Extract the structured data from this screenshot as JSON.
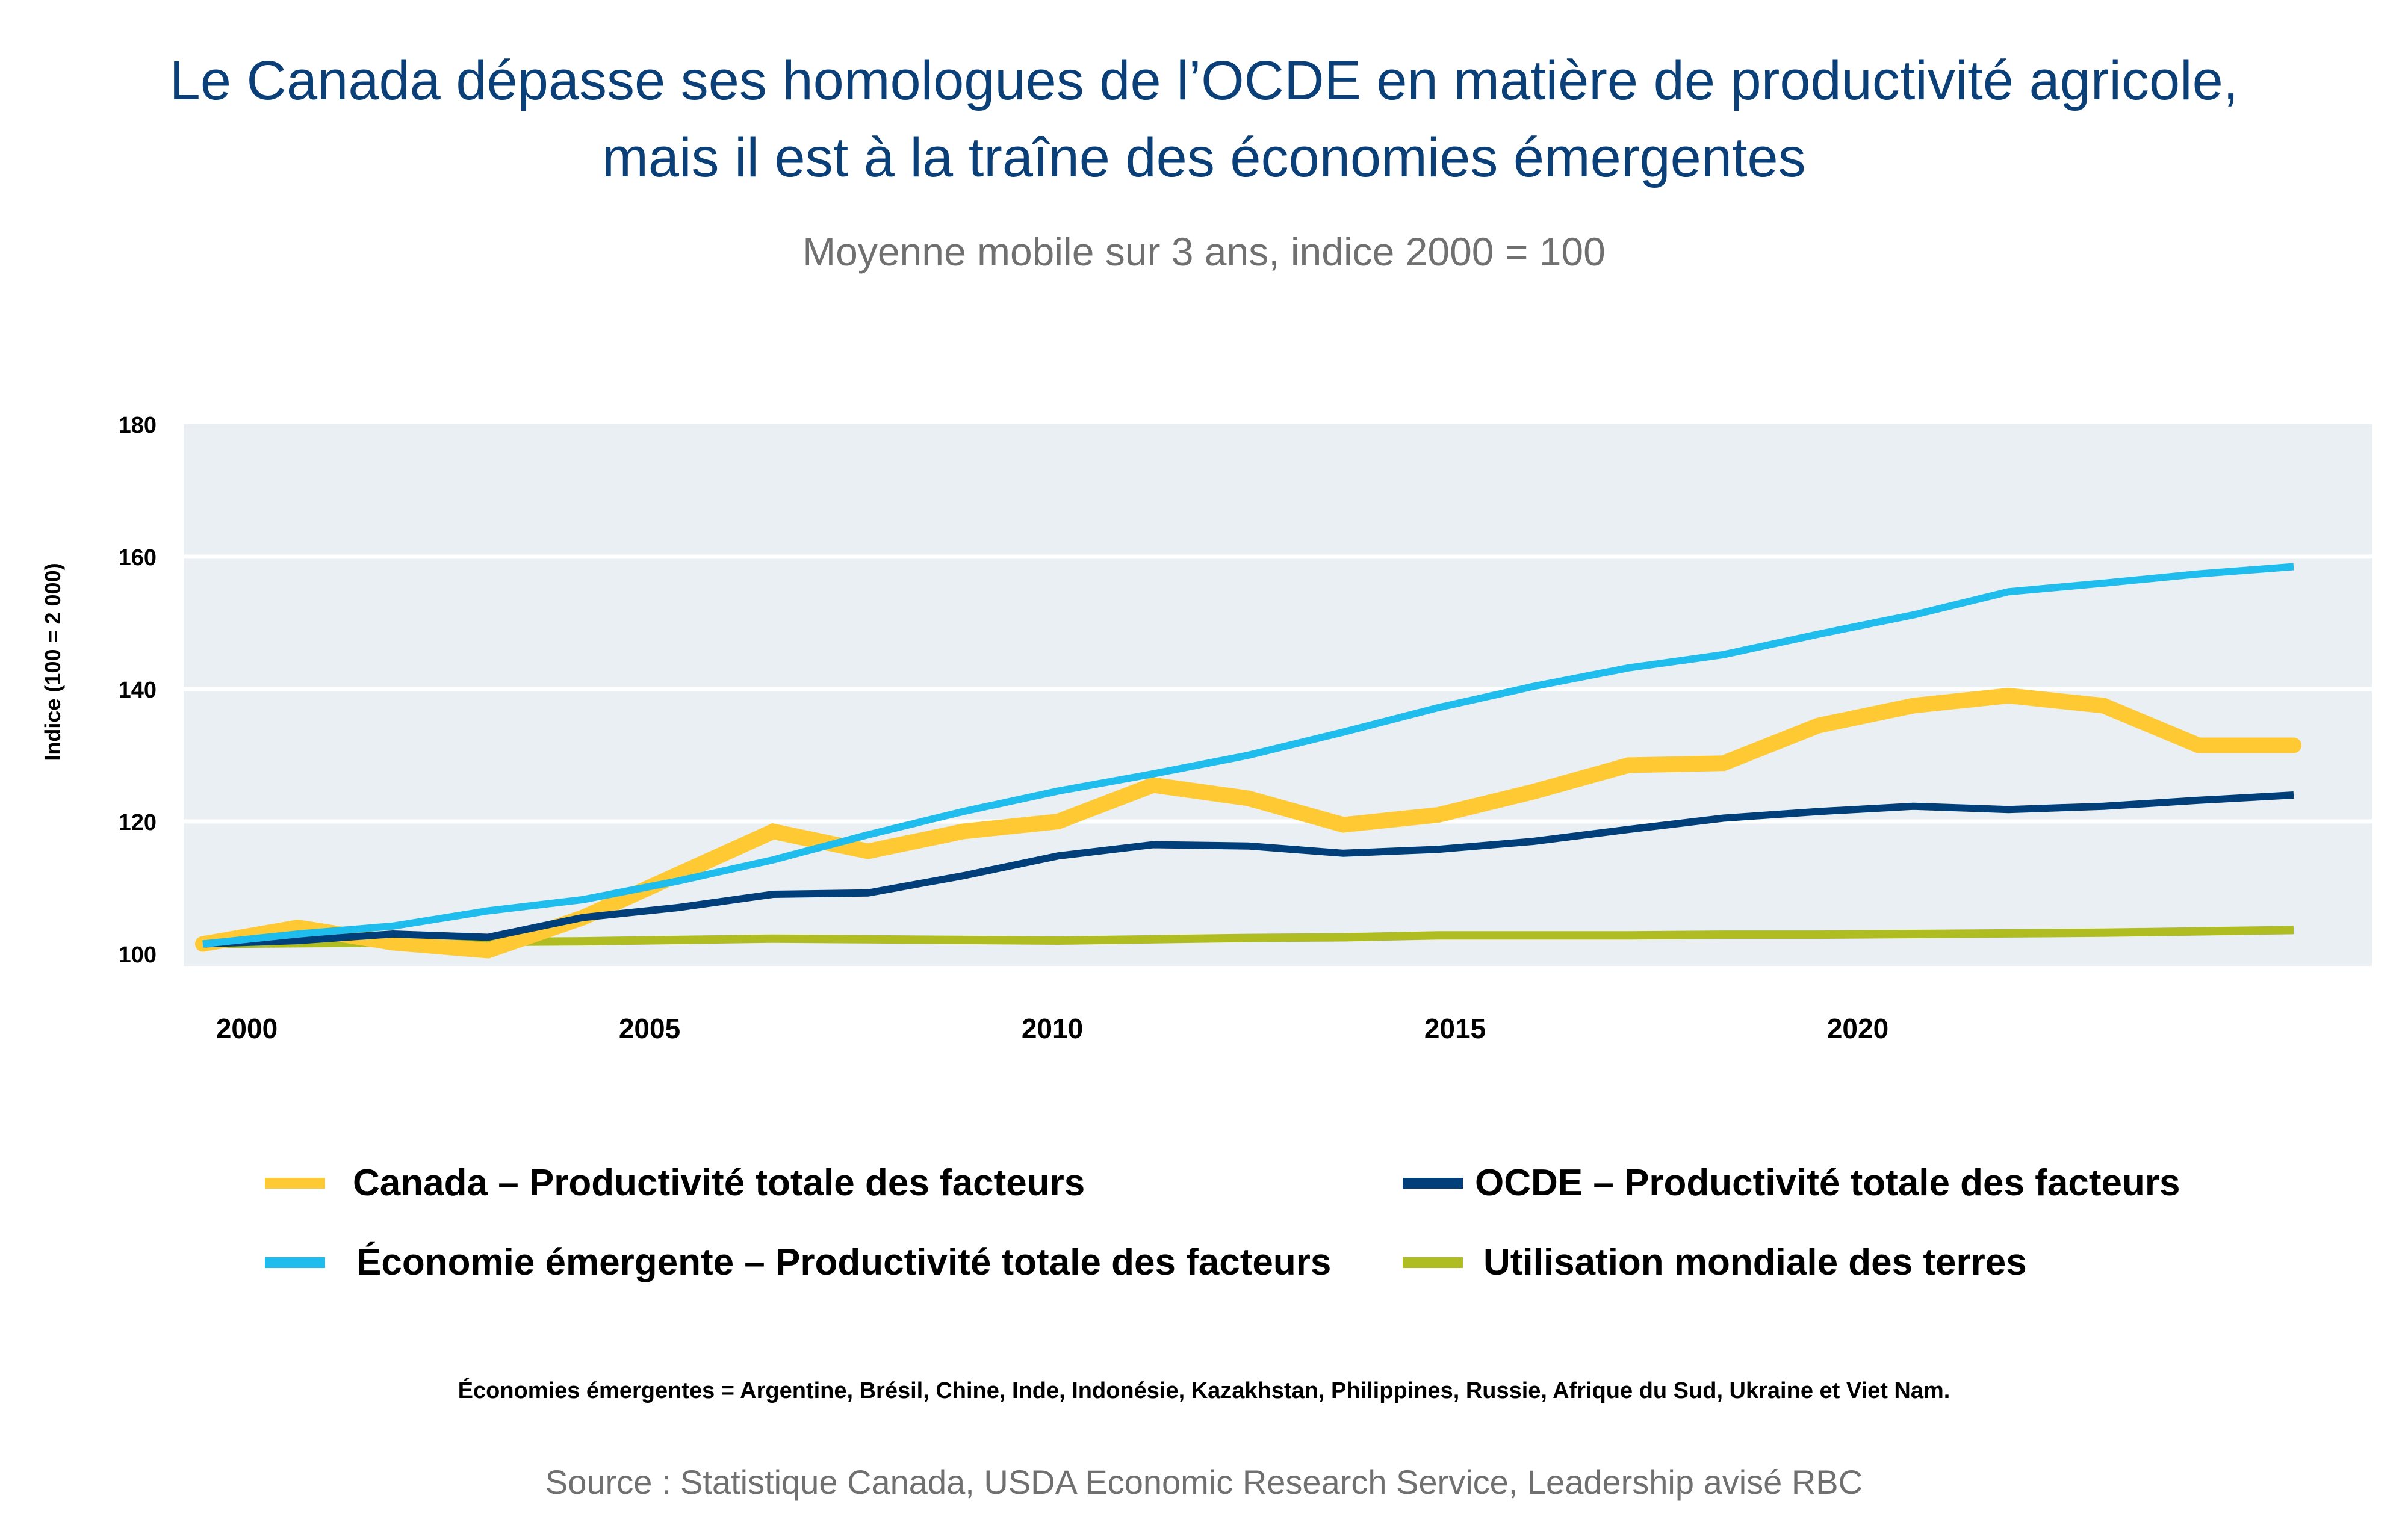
{
  "header": {
    "title_line1": "Le Canada dépasse ses homologues de l’OCDE en matière de productivité agricole,",
    "title_line2": "mais il est à la traîne des économies émergentes",
    "subtitle": "Moyenne mobile sur 3 ans, indice 2000 = 100"
  },
  "chart_data": {
    "type": "line",
    "title": "Le Canada dépasse ses homologues de l’OCDE en matière de productivité agricole, mais il est à la traîne des économies émergentes",
    "subtitle": "Moyenne mobile sur 3 ans, indice 2000 = 100",
    "xlabel": "",
    "ylabel": "Indice (100 = 2 000)",
    "xlim": [
      1999.4,
      2026.5
    ],
    "ylim": [
      100,
      180
    ],
    "x_ticks": [
      2000,
      2005,
      2010,
      2015,
      2020
    ],
    "x_tick_labels": [
      "2000",
      "2005",
      "2010",
      "2015",
      "2020"
    ],
    "y_ticks": [
      100,
      120,
      140,
      160,
      180
    ],
    "y_tick_labels": [
      "100",
      "120",
      "140",
      "160",
      "180"
    ],
    "grid": true,
    "background": "#e9eff2",
    "legend_position": "bottom",
    "x": [
      1999.5,
      2000.7,
      2001.9,
      2003.0,
      2004.2,
      2005.4,
      2006.5,
      2007.7,
      2008.9,
      2010.0,
      2011.2,
      2012.4,
      2013.6,
      2014.7,
      2015.9,
      2017.1,
      2018.2,
      2019.4,
      2020.6,
      2021.8,
      2022.9,
      2024.1,
      2025.3
    ],
    "series": [
      {
        "name": "Canada – Productivité totale des facteurs",
        "color": "#ffc933",
        "values": [
          101.5,
          104.0,
          101.7,
          100.5,
          105.5,
          112.0,
          118.5,
          115.5,
          118.5,
          120.0,
          125.5,
          123.5,
          119.5,
          121.0,
          124.5,
          128.5,
          128.8,
          134.5,
          137.5,
          139.0,
          137.5,
          131.5,
          131.5
        ]
      },
      {
        "name": "OCDE – Productivité totale des facteurs",
        "color": "#003f7a",
        "values": [
          101.5,
          102.0,
          103.0,
          102.5,
          105.5,
          107.0,
          109.0,
          109.2,
          111.8,
          114.8,
          116.5,
          116.3,
          115.2,
          115.8,
          117.0,
          118.8,
          120.5,
          121.5,
          122.3,
          121.8,
          122.3,
          123.2,
          124.0
        ]
      },
      {
        "name": "Économie émergente – Productivité totale des facteurs",
        "color": "#1fbdee",
        "values": [
          101.5,
          103.0,
          104.2,
          106.5,
          108.2,
          111.0,
          114.2,
          118.0,
          121.5,
          124.6,
          127.2,
          130.0,
          133.5,
          137.2,
          140.4,
          143.2,
          145.2,
          148.3,
          151.2,
          154.7,
          156.0,
          157.4,
          158.5
        ]
      },
      {
        "name": "Utilisation mondiale des terres",
        "color": "#afbd22",
        "values": [
          101.5,
          101.6,
          101.7,
          101.8,
          101.9,
          102.1,
          102.3,
          102.2,
          102.1,
          102.0,
          102.2,
          102.4,
          102.5,
          102.8,
          102.8,
          102.8,
          102.9,
          102.9,
          103.0,
          103.1,
          103.2,
          103.4,
          103.6
        ]
      }
    ]
  },
  "legend": {
    "items": [
      {
        "label": "Canada – Productivité totale des facteurs",
        "color": "#ffc933"
      },
      {
        "label": "OCDE – Productivité totale des facteurs",
        "color": "#003f7a"
      },
      {
        "label": "Économie émergente – Productivité totale des facteurs",
        "color": "#1fbdee"
      },
      {
        "label": "Utilisation mondiale des terres",
        "color": "#afbd22"
      }
    ]
  },
  "footer": {
    "note": "Économies émergentes = Argentine, Brésil, Chine, Inde, Indonésie, Kazakhstan, Philippines, Russie, Afrique du Sud, Ukraine et Viet Nam.",
    "source": "Source : Statistique Canada, USDA Economic Research Service, Leadership avisé RBC"
  }
}
